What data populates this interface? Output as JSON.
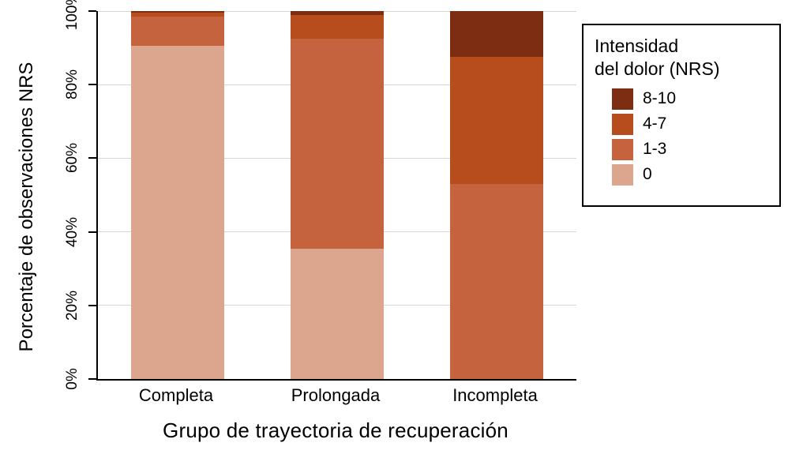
{
  "chart_data": {
    "type": "bar",
    "subtype": "stacked-100-percent",
    "title": "",
    "xlabel": "Grupo de trayectoria de recuperación",
    "ylabel": "Porcentaje de observaciones NRS",
    "categories": [
      "Completa",
      "Prolongada",
      "Incompleta"
    ],
    "series": [
      {
        "name": "8-10",
        "color": "#7c2d12",
        "values": [
          0.5,
          1.0,
          12.5
        ]
      },
      {
        "name": "4-7",
        "color": "#b74c1d",
        "values": [
          1.0,
          6.5,
          34.5
        ]
      },
      {
        "name": "1-3",
        "color": "#c5633f",
        "values": [
          8.0,
          57.0,
          53.0
        ]
      },
      {
        "name": "0",
        "color": "#dba58e",
        "values": [
          90.5,
          35.5,
          0.0
        ]
      }
    ],
    "ylim": [
      0,
      100
    ],
    "y_tick_values": [
      0,
      20,
      40,
      60,
      80,
      100
    ],
    "y_tick_labels": [
      "0%",
      "20%",
      "40%",
      "60%",
      "80%",
      "100%"
    ],
    "grid": "horizontal",
    "gridline_color": "#d6d6d6",
    "legend": {
      "position": "top-right",
      "title_line1": "Intensidad",
      "title_line2": "del dolor (NRS)",
      "entries": [
        "8-10",
        "4-7",
        "1-3",
        "0"
      ]
    }
  }
}
